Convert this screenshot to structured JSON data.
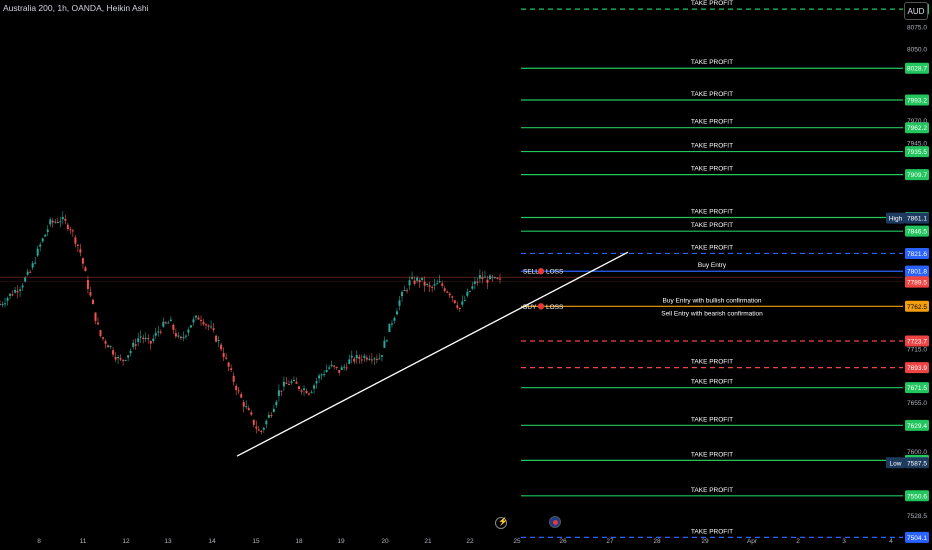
{
  "header": {
    "symbol": "Australia 200, 1h, OANDA, Heikin Ashi",
    "currency": "AUD"
  },
  "colors": {
    "background": "#000000",
    "up": "#26a69a",
    "down": "#ef5350",
    "take_profit": "#22c55e",
    "stop": "#ef4444",
    "blue_line": "#2962ff",
    "sell_entry": "#f59e0b",
    "trendline": "#ffffff"
  },
  "chart_data": {
    "type": "candlestick",
    "style": "Heikin Ashi",
    "timeframe": "1h",
    "x_ticks": [
      "8",
      "11",
      "12",
      "13",
      "14",
      "15",
      "18",
      "19",
      "20",
      "21",
      "22",
      "25",
      "26",
      "27",
      "28",
      "29",
      "Apr",
      "2",
      "3",
      "4"
    ],
    "y_ticks": [
      "8075.0",
      "8050.0",
      "7970.0",
      "7945.0",
      "7715.0",
      "7655.0",
      "7600.0",
      "7528.5"
    ],
    "ylim": [
      7490,
      8105
    ],
    "price_levels": [
      {
        "label": "TAKE PROFIT",
        "price": 8094.8,
        "price_label": "8094.8",
        "style": "dashed",
        "kind": "tp"
      },
      {
        "label": "TAKE PROFIT",
        "price": 8028.7,
        "price_label": "8028.7",
        "style": "solid",
        "kind": "tp"
      },
      {
        "label": "TAKE PROFIT",
        "price": 7993.2,
        "price_label": "7993.2",
        "style": "solid",
        "kind": "tp"
      },
      {
        "label": "TAKE PROFIT",
        "price": 7962.2,
        "price_label": "7962.2",
        "style": "solid",
        "kind": "tp"
      },
      {
        "label": "TAKE PROFIT",
        "price": 7935.5,
        "price_label": "7935.5",
        "style": "solid",
        "kind": "tp"
      },
      {
        "label": "TAKE PROFIT",
        "price": 7909.7,
        "price_label": "7909.7",
        "style": "solid",
        "kind": "tp"
      },
      {
        "label": "TAKE PROFIT",
        "price": 7861.8,
        "price_label": "7861.8",
        "style": "solid",
        "kind": "tp"
      },
      {
        "label": "TAKE PROFIT",
        "price": 7846.5,
        "price_label": "7846.5",
        "style": "solid",
        "kind": "tp"
      },
      {
        "label": "TAKE PROFIT",
        "price": 7821.6,
        "price_label": "7821.6",
        "style": "dashed",
        "kind": "blue"
      },
      {
        "label": "Buy Entry",
        "price": 7801.7,
        "price_label": "7801.7",
        "style": "solid",
        "kind": "blue"
      },
      {
        "label": "Buy Entry with bullish confirmation",
        "price": 7762.5,
        "price_label": "7762.5",
        "style": "solid",
        "kind": "sell"
      },
      {
        "label": "Sell Entry with bearish confirmation",
        "price": 7762.5,
        "price_label": "7762.5",
        "style": "none",
        "kind": "sell"
      },
      {
        "label": "",
        "price": 7723.7,
        "price_label": "7723.7",
        "style": "dashed",
        "kind": "stop"
      },
      {
        "label": "TAKE PROFIT",
        "price": 7693.9,
        "price_label": "7693.9",
        "style": "dashed",
        "kind": "stop"
      },
      {
        "label": "TAKE PROFIT",
        "price": 7671.5,
        "price_label": "7671.5",
        "style": "solid",
        "kind": "tp"
      },
      {
        "label": "TAKE PROFIT",
        "price": 7629.4,
        "price_label": "7629.4",
        "style": "solid",
        "kind": "tp"
      },
      {
        "label": "TAKE PROFIT",
        "price": 7590.2,
        "price_label": "7590.2",
        "style": "solid",
        "kind": "tp"
      },
      {
        "label": "TAKE PROFIT",
        "price": 7550.6,
        "price_label": "7550.6",
        "style": "solid",
        "kind": "tp"
      },
      {
        "label": "TAKE PROFIT",
        "price": 7504.1,
        "price_label": "7504.1",
        "style": "dashed",
        "kind": "blue"
      }
    ],
    "axis_price_labels": [
      {
        "text": "7801.8",
        "price": 7801.8,
        "kind": "blue"
      },
      {
        "text": "7790.0",
        "price": 7790.0,
        "kind": "stop"
      },
      {
        "text": "7789.5",
        "price": 7789.5,
        "kind": "stop"
      }
    ],
    "extremes": [
      {
        "label": "High",
        "price": 7861.1,
        "price_label": "7861.1"
      },
      {
        "label": "Low",
        "price": 7587.5,
        "price_label": "7587.5"
      }
    ],
    "markers": [
      {
        "text": "SELL",
        "suffix": "LOSS",
        "price": 7801.7
      },
      {
        "text": "BUY",
        "suffix": "LOSS",
        "price": 7762.5
      }
    ],
    "trendline": {
      "from": {
        "x": "14",
        "price": 7595
      },
      "to": {
        "x": "27",
        "price": 7823
      }
    },
    "current_price_line": 7795,
    "price_path": [
      [
        0,
        7765
      ],
      [
        2,
        7785
      ],
      [
        3,
        7800
      ],
      [
        4,
        7830
      ],
      [
        5,
        7855
      ],
      [
        6,
        7860
      ],
      [
        7,
        7852
      ],
      [
        8,
        7825
      ],
      [
        9,
        7775
      ],
      [
        10,
        7730
      ],
      [
        11,
        7718
      ],
      [
        12,
        7700
      ],
      [
        13,
        7712
      ],
      [
        14,
        7730
      ],
      [
        15,
        7720
      ],
      [
        16,
        7738
      ],
      [
        17,
        7745
      ],
      [
        18,
        7722
      ],
      [
        19,
        7742
      ],
      [
        20,
        7752
      ],
      [
        21,
        7738
      ],
      [
        22,
        7720
      ],
      [
        23,
        7690
      ],
      [
        24,
        7662
      ],
      [
        25,
        7640
      ],
      [
        26,
        7620
      ],
      [
        27,
        7642
      ],
      [
        28,
        7670
      ],
      [
        29,
        7678
      ],
      [
        30,
        7672
      ],
      [
        31,
        7668
      ],
      [
        32,
        7685
      ],
      [
        33,
        7695
      ],
      [
        34,
        7690
      ],
      [
        35,
        7702
      ],
      [
        36,
        7705
      ],
      [
        37,
        7708
      ],
      [
        38,
        7705
      ],
      [
        39,
        7740
      ],
      [
        40,
        7770
      ],
      [
        41,
        7790
      ],
      [
        42,
        7792
      ],
      [
        43,
        7782
      ],
      [
        44,
        7788
      ],
      [
        45,
        7778
      ],
      [
        46,
        7760
      ],
      [
        47,
        7780
      ],
      [
        48,
        7795
      ],
      [
        49,
        7792
      ],
      [
        50,
        7790
      ]
    ]
  },
  "toolbar": {
    "lightning_icon": "lightning-icon",
    "flag_icon": "australia-flag-icon"
  }
}
